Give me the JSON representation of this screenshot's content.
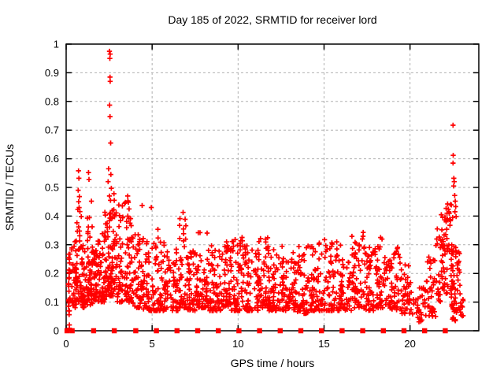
{
  "window": {
    "title": "Day 185 of 2022, SRMTID for receiver lord"
  },
  "chart_data": {
    "type": "scatter",
    "title": "Day 185 of 2022, SRMTID for receiver lord",
    "xlabel": "GPS time / hours",
    "ylabel": "SRMTID / TECUs",
    "xlim": [
      0,
      24
    ],
    "ylim": [
      0,
      1
    ],
    "xticks": [
      0,
      5,
      10,
      15,
      20
    ],
    "xtick_labels": [
      "0",
      "5",
      "10",
      "15",
      "20"
    ],
    "yticks": [
      0,
      0.1,
      0.2,
      0.3,
      0.4,
      0.5,
      0.6,
      0.7,
      0.8,
      0.9,
      1
    ],
    "ytick_labels": [
      "0",
      "0.1",
      "0.2",
      "0.3",
      "0.4",
      "0.5",
      "0.6",
      "0.7",
      "0.8",
      "0.9",
      "1"
    ],
    "grid": true,
    "legend": "none",
    "marker": "plus",
    "marker_color": "#ff0000",
    "zero_marker": "filled-square",
    "zero_marker_x": [
      0.05,
      0.35,
      1.6,
      2.8,
      4.05,
      5.25,
      6.45,
      7.65,
      8.85,
      10.05,
      11.25,
      12.45,
      13.65,
      14.85,
      16.05,
      17.25,
      18.45,
      19.65,
      20.85,
      22.05
    ],
    "outlier_points": [
      [
        2.52,
        0.975
      ],
      [
        2.56,
        0.965
      ],
      [
        2.54,
        0.95
      ],
      [
        2.55,
        0.885
      ],
      [
        2.56,
        0.87
      ],
      [
        2.53,
        0.787
      ],
      [
        2.55,
        0.747
      ],
      [
        2.59,
        0.655
      ],
      [
        2.47,
        0.565
      ],
      [
        2.6,
        0.545
      ],
      [
        2.44,
        0.52
      ],
      [
        2.63,
        0.497
      ],
      [
        2.52,
        0.47
      ],
      [
        2.58,
        0.455
      ],
      [
        0.72,
        0.558
      ],
      [
        0.74,
        0.532
      ],
      [
        0.7,
        0.49
      ],
      [
        0.77,
        0.468
      ],
      [
        0.73,
        0.45
      ],
      [
        1.3,
        0.552
      ],
      [
        1.33,
        0.528
      ],
      [
        1.47,
        0.452
      ],
      [
        2.78,
        0.478
      ],
      [
        2.8,
        0.455
      ],
      [
        3.58,
        0.47
      ],
      [
        3.62,
        0.448
      ],
      [
        3.66,
        0.425
      ],
      [
        4.42,
        0.437
      ],
      [
        4.95,
        0.43
      ],
      [
        6.8,
        0.413
      ],
      [
        22.5,
        0.717
      ],
      [
        22.51,
        0.612
      ],
      [
        22.5,
        0.585
      ],
      [
        22.55,
        0.532
      ],
      [
        22.57,
        0.52
      ],
      [
        22.54,
        0.505
      ],
      [
        22.6,
        0.472
      ],
      [
        22.63,
        0.452
      ],
      [
        22.66,
        0.433
      ],
      [
        22.61,
        0.415
      ],
      [
        21.82,
        0.405
      ],
      [
        22.1,
        0.427
      ],
      [
        22.15,
        0.41
      ],
      [
        22.68,
        0.398
      ],
      [
        21.85,
        0.352
      ],
      [
        22.3,
        0.388
      ]
    ],
    "density_clusters": [
      [
        0.13,
        0.25,
        0.0,
        0.27,
        28,
        1.0
      ],
      [
        0.3,
        0.6,
        0.08,
        0.32,
        30,
        1.5
      ],
      [
        0.55,
        0.9,
        0.1,
        0.43,
        48,
        1.5
      ],
      [
        0.9,
        1.15,
        0.08,
        0.3,
        30,
        1.5
      ],
      [
        1.15,
        1.55,
        0.09,
        0.4,
        55,
        1.6
      ],
      [
        1.55,
        1.85,
        0.1,
        0.28,
        35,
        1.4
      ],
      [
        1.85,
        2.25,
        0.1,
        0.34,
        50,
        1.5
      ],
      [
        2.25,
        2.55,
        0.12,
        0.42,
        45,
        1.4
      ],
      [
        2.55,
        2.85,
        0.12,
        0.45,
        45,
        1.5
      ],
      [
        2.9,
        3.3,
        0.1,
        0.44,
        48,
        1.7
      ],
      [
        3.4,
        3.8,
        0.1,
        0.46,
        50,
        1.6
      ],
      [
        3.8,
        4.3,
        0.08,
        0.35,
        45,
        1.6
      ],
      [
        4.3,
        5.0,
        0.07,
        0.33,
        55,
        1.8
      ],
      [
        5.0,
        5.7,
        0.07,
        0.36,
        60,
        1.9
      ],
      [
        5.7,
        6.5,
        0.07,
        0.3,
        62,
        1.8
      ],
      [
        6.55,
        7.0,
        0.08,
        0.4,
        42,
        1.8
      ],
      [
        7.0,
        7.6,
        0.07,
        0.28,
        55,
        1.7
      ],
      [
        7.6,
        8.2,
        0.08,
        0.35,
        55,
        1.7
      ],
      [
        8.2,
        9.0,
        0.07,
        0.3,
        65,
        1.8
      ],
      [
        9.0,
        9.6,
        0.08,
        0.32,
        55,
        1.7
      ],
      [
        9.6,
        10.4,
        0.07,
        0.33,
        65,
        1.8
      ],
      [
        10.4,
        11.2,
        0.07,
        0.3,
        65,
        1.8
      ],
      [
        11.2,
        11.8,
        0.08,
        0.35,
        55,
        1.7
      ],
      [
        11.8,
        12.6,
        0.07,
        0.3,
        62,
        1.8
      ],
      [
        12.6,
        13.4,
        0.07,
        0.28,
        60,
        1.8
      ],
      [
        13.4,
        14.2,
        0.06,
        0.3,
        60,
        1.8
      ],
      [
        14.2,
        15.0,
        0.07,
        0.33,
        60,
        1.8
      ],
      [
        15.0,
        15.8,
        0.07,
        0.33,
        60,
        1.8
      ],
      [
        15.8,
        16.6,
        0.07,
        0.3,
        60,
        1.8
      ],
      [
        16.6,
        17.3,
        0.08,
        0.35,
        55,
        1.8
      ],
      [
        17.3,
        18.0,
        0.07,
        0.3,
        55,
        1.8
      ],
      [
        18.0,
        18.6,
        0.08,
        0.33,
        50,
        1.7
      ],
      [
        18.6,
        19.4,
        0.07,
        0.3,
        55,
        1.8
      ],
      [
        19.4,
        20.1,
        0.06,
        0.25,
        45,
        1.7
      ],
      [
        20.1,
        20.9,
        0.03,
        0.15,
        32,
        1.3
      ],
      [
        20.9,
        21.5,
        0.05,
        0.26,
        35,
        1.4
      ],
      [
        21.5,
        22.0,
        0.1,
        0.4,
        40,
        1.4
      ],
      [
        22.0,
        22.5,
        0.08,
        0.45,
        48,
        1.3
      ],
      [
        22.4,
        22.9,
        0.03,
        0.3,
        48,
        1.2
      ],
      [
        22.9,
        23.15,
        0.05,
        0.16,
        12,
        1.2
      ]
    ],
    "seed": 123456789
  }
}
